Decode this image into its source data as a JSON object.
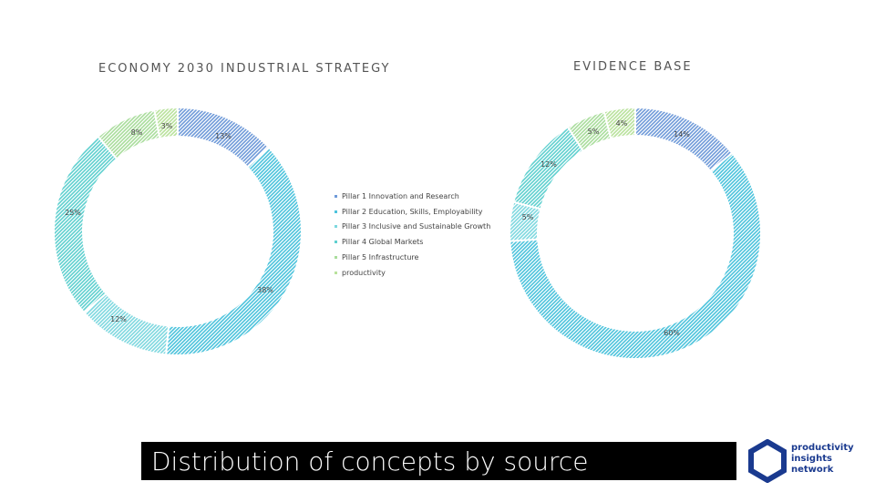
{
  "colors": {
    "series": [
      "#6f9ad9",
      "#4cc3dc",
      "#7ed8df",
      "#5fd0cf",
      "#a9dd9c",
      "#b9e29c"
    ]
  },
  "legend": [
    "Pillar 1 Innovation and Research",
    "Pillar 2 Education, Skills, Employability",
    "Pillar 3 Inclusive and Sustainable Growth",
    "Pillar 4 Global Markets",
    "Pillar 5 Infrastructure",
    "productivity"
  ],
  "chart_data": [
    {
      "type": "donut",
      "title": "ECONOMY 2030 INDUSTRIAL STRATEGY",
      "categories": [
        "Pillar 1 Innovation and Research",
        "Pillar 2 Education, Skills, Employability",
        "Pillar 3 Inclusive and Sustainable Growth",
        "Pillar 4 Global Markets",
        "Pillar 5 Infrastructure",
        "productivity"
      ],
      "values": [
        13,
        38,
        12,
        25,
        8,
        3
      ],
      "labels": [
        "13%",
        "38%",
        "12%",
        "25%",
        "8%",
        "3%"
      ]
    },
    {
      "type": "donut",
      "title": "EVIDENCE BASE",
      "categories": [
        "Pillar 1 Innovation and Research",
        "Pillar 2 Education, Skills, Employability",
        "Pillar 3 Inclusive and Sustainable Growth",
        "Pillar 4 Global Markets",
        "Pillar 5 Infrastructure",
        "productivity"
      ],
      "values": [
        14,
        60,
        5,
        12,
        5,
        4
      ],
      "labels": [
        "14%",
        "60%",
        "5%",
        "12%",
        "5%",
        "4%"
      ]
    }
  ],
  "footer": {
    "caption": "Distribution of concepts by source"
  },
  "logo": {
    "line1": "productivity",
    "line2": "insights",
    "line3": "network"
  }
}
